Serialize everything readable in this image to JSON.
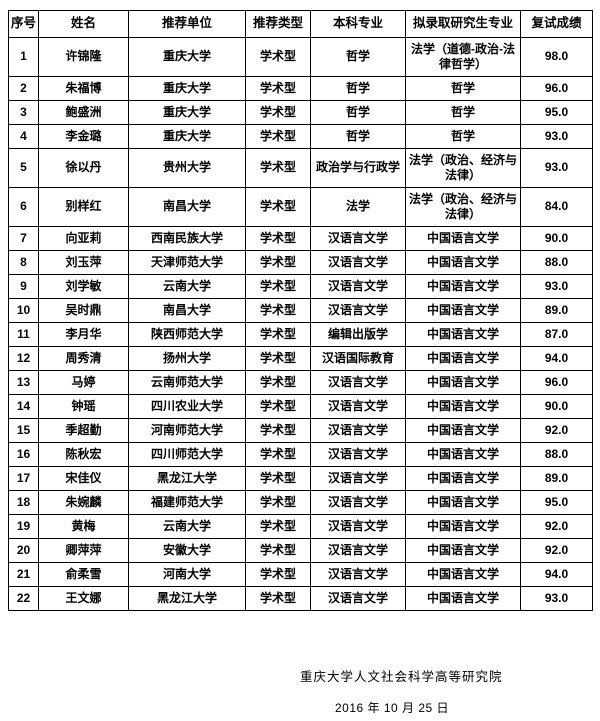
{
  "table": {
    "headers": [
      "序号",
      "姓名",
      "推荐单位",
      "推荐类型",
      "本科专业",
      "拟录取研究生专业",
      "复试成绩"
    ],
    "column_keys": [
      "index",
      "name",
      "unit",
      "type",
      "ugmajor",
      "grmajor",
      "score"
    ],
    "rows": [
      [
        "1",
        "许锦隆",
        "重庆大学",
        "学术型",
        "哲学",
        "法学（道德-政治-法律哲学）",
        "98.0"
      ],
      [
        "2",
        "朱福博",
        "重庆大学",
        "学术型",
        "哲学",
        "哲学",
        "96.0"
      ],
      [
        "3",
        "鲍盛洲",
        "重庆大学",
        "学术型",
        "哲学",
        "哲学",
        "95.0"
      ],
      [
        "4",
        "李金璐",
        "重庆大学",
        "学术型",
        "哲学",
        "哲学",
        "93.0"
      ],
      [
        "5",
        "徐以丹",
        "贵州大学",
        "学术型",
        "政治学与行政学",
        "法学（政治、经济与法律）",
        "93.0"
      ],
      [
        "6",
        "别样红",
        "南昌大学",
        "学术型",
        "法学",
        "法学（政治、经济与法律）",
        "84.0"
      ],
      [
        "7",
        "向亚莉",
        "西南民族大学",
        "学术型",
        "汉语言文学",
        "中国语言文学",
        "90.0"
      ],
      [
        "8",
        "刘玉萍",
        "天津师范大学",
        "学术型",
        "汉语言文学",
        "中国语言文学",
        "88.0"
      ],
      [
        "9",
        "刘学敏",
        "云南大学",
        "学术型",
        "汉语言文学",
        "中国语言文学",
        "93.0"
      ],
      [
        "10",
        "吴时鼎",
        "南昌大学",
        "学术型",
        "汉语言文学",
        "中国语言文学",
        "89.0"
      ],
      [
        "11",
        "李月华",
        "陕西师范大学",
        "学术型",
        "编辑出版学",
        "中国语言文学",
        "87.0"
      ],
      [
        "12",
        "周秀清",
        "扬州大学",
        "学术型",
        "汉语国际教育",
        "中国语言文学",
        "94.0"
      ],
      [
        "13",
        "马婷",
        "云南师范大学",
        "学术型",
        "汉语言文学",
        "中国语言文学",
        "96.0"
      ],
      [
        "14",
        "钟瑶",
        "四川农业大学",
        "学术型",
        "汉语言文学",
        "中国语言文学",
        "90.0"
      ],
      [
        "15",
        "季超勤",
        "河南师范大学",
        "学术型",
        "汉语言文学",
        "中国语言文学",
        "92.0"
      ],
      [
        "16",
        "陈秋宏",
        "四川师范大学",
        "学术型",
        "汉语言文学",
        "中国语言文学",
        "88.0"
      ],
      [
        "17",
        "宋佳仪",
        "黑龙江大学",
        "学术型",
        "汉语言文学",
        "中国语言文学",
        "89.0"
      ],
      [
        "18",
        "朱婉麟",
        "福建师范大学",
        "学术型",
        "汉语言文学",
        "中国语言文学",
        "95.0"
      ],
      [
        "19",
        "黄梅",
        "云南大学",
        "学术型",
        "汉语言文学",
        "中国语言文学",
        "92.0"
      ],
      [
        "20",
        "卿萍萍",
        "安徽大学",
        "学术型",
        "汉语言文学",
        "中国语言文学",
        "92.0"
      ],
      [
        "21",
        "俞柔雪",
        "河南大学",
        "学术型",
        "汉语言文学",
        "中国语言文学",
        "94.0"
      ],
      [
        "22",
        "王文娜",
        "黑龙江大学",
        "学术型",
        "汉语言文学",
        "中国语言文学",
        "93.0"
      ]
    ]
  },
  "footer": {
    "institution": "重庆大学人文社会科学高等研究院",
    "date": "2016 年 10 月 25 日"
  }
}
